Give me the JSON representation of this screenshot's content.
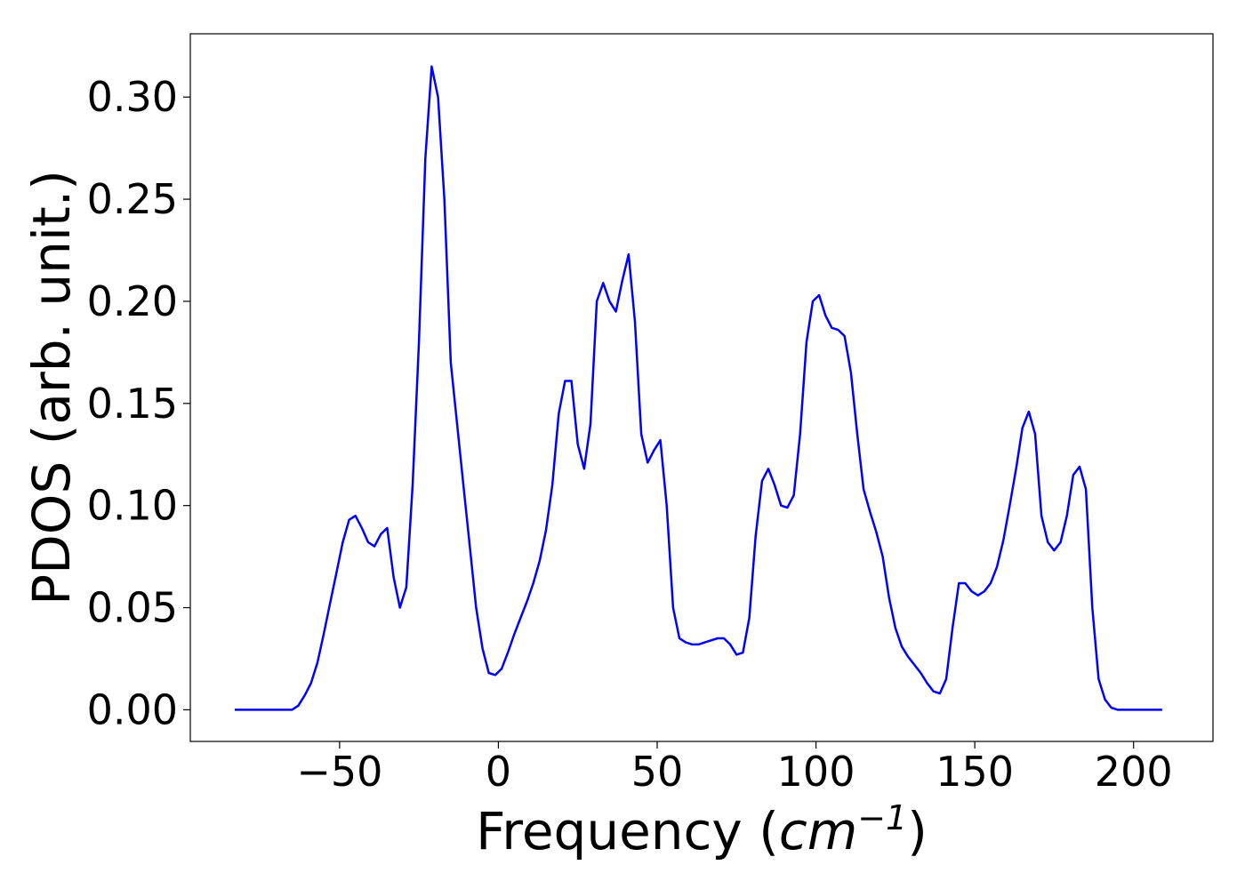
{
  "chart_data": {
    "type": "line",
    "title": "",
    "xlabel": "Frequency",
    "xlabel_unit_prefix": "(",
    "xlabel_unit_math": "cm",
    "xlabel_unit_sup": "−1",
    "xlabel_unit_suffix": ")",
    "ylabel": "PDOS (arb. unit.)",
    "xlim": [
      -97,
      225
    ],
    "ylim": [
      -0.0155,
      0.331
    ],
    "xticks": [
      -50,
      0,
      50,
      100,
      150,
      200
    ],
    "xtick_labels": [
      "−50",
      "0",
      "50",
      "100",
      "150",
      "200"
    ],
    "yticks": [
      0.0,
      0.05,
      0.1,
      0.15,
      0.2,
      0.25,
      0.3
    ],
    "ytick_labels": [
      "0.00",
      "0.05",
      "0.10",
      "0.15",
      "0.20",
      "0.25",
      "0.30"
    ],
    "grid": false,
    "legend": "none",
    "colors": {
      "line": "#0000ff",
      "axes": "#000000",
      "background": "#ffffff"
    },
    "series": [
      {
        "x": [
          -83,
          -65,
          -63,
          -61,
          -59,
          -57,
          -55,
          -53,
          -51,
          -49,
          -47,
          -45,
          -43,
          -41,
          -39,
          -37,
          -35,
          -33,
          -31,
          -29,
          -27,
          -25,
          -23,
          -21,
          -19,
          -17,
          -15,
          -13,
          -11,
          -9,
          -7,
          -5,
          -3,
          -1,
          1,
          3,
          5,
          7,
          9,
          11,
          13,
          15,
          17,
          19,
          21,
          23,
          25,
          27,
          29,
          31,
          33,
          35,
          37,
          39,
          41,
          43,
          45,
          47,
          49,
          51,
          53,
          55,
          57,
          59,
          61,
          63,
          65,
          67,
          69,
          71,
          73,
          75,
          77,
          79,
          81,
          83,
          85,
          87,
          89,
          91,
          93,
          95,
          97,
          99,
          101,
          103,
          105,
          107,
          109,
          111,
          113,
          115,
          117,
          119,
          121,
          123,
          125,
          127,
          129,
          131,
          133,
          135,
          137,
          139,
          141,
          143,
          145,
          147,
          149,
          151,
          153,
          155,
          157,
          159,
          161,
          163,
          165,
          167,
          169,
          171,
          173,
          175,
          177,
          179,
          181,
          183,
          185,
          187,
          189,
          191,
          193,
          195,
          209
        ],
        "y": [
          0.0,
          0.0,
          0.002,
          0.007,
          0.013,
          0.023,
          0.037,
          0.052,
          0.067,
          0.082,
          0.093,
          0.095,
          0.089,
          0.082,
          0.08,
          0.086,
          0.089,
          0.065,
          0.05,
          0.06,
          0.11,
          0.18,
          0.27,
          0.315,
          0.3,
          0.25,
          0.17,
          0.14,
          0.11,
          0.08,
          0.05,
          0.03,
          0.018,
          0.017,
          0.02,
          0.028,
          0.037,
          0.045,
          0.053,
          0.062,
          0.073,
          0.088,
          0.11,
          0.145,
          0.161,
          0.161,
          0.13,
          0.118,
          0.14,
          0.2,
          0.209,
          0.2,
          0.195,
          0.21,
          0.223,
          0.19,
          0.135,
          0.121,
          0.127,
          0.132,
          0.1,
          0.05,
          0.035,
          0.033,
          0.032,
          0.032,
          0.033,
          0.034,
          0.035,
          0.035,
          0.032,
          0.027,
          0.028,
          0.045,
          0.085,
          0.112,
          0.118,
          0.11,
          0.1,
          0.099,
          0.105,
          0.135,
          0.18,
          0.2,
          0.203,
          0.193,
          0.187,
          0.186,
          0.183,
          0.165,
          0.135,
          0.108,
          0.097,
          0.087,
          0.075,
          0.055,
          0.04,
          0.031,
          0.026,
          0.022,
          0.018,
          0.013,
          0.009,
          0.008,
          0.015,
          0.04,
          0.062,
          0.062,
          0.058,
          0.056,
          0.058,
          0.062,
          0.07,
          0.083,
          0.1,
          0.118,
          0.138,
          0.146,
          0.135,
          0.095,
          0.082,
          0.078,
          0.082,
          0.095,
          0.115,
          0.119,
          0.108,
          0.05,
          0.015,
          0.005,
          0.001,
          0.0,
          0.0
        ]
      }
    ]
  }
}
